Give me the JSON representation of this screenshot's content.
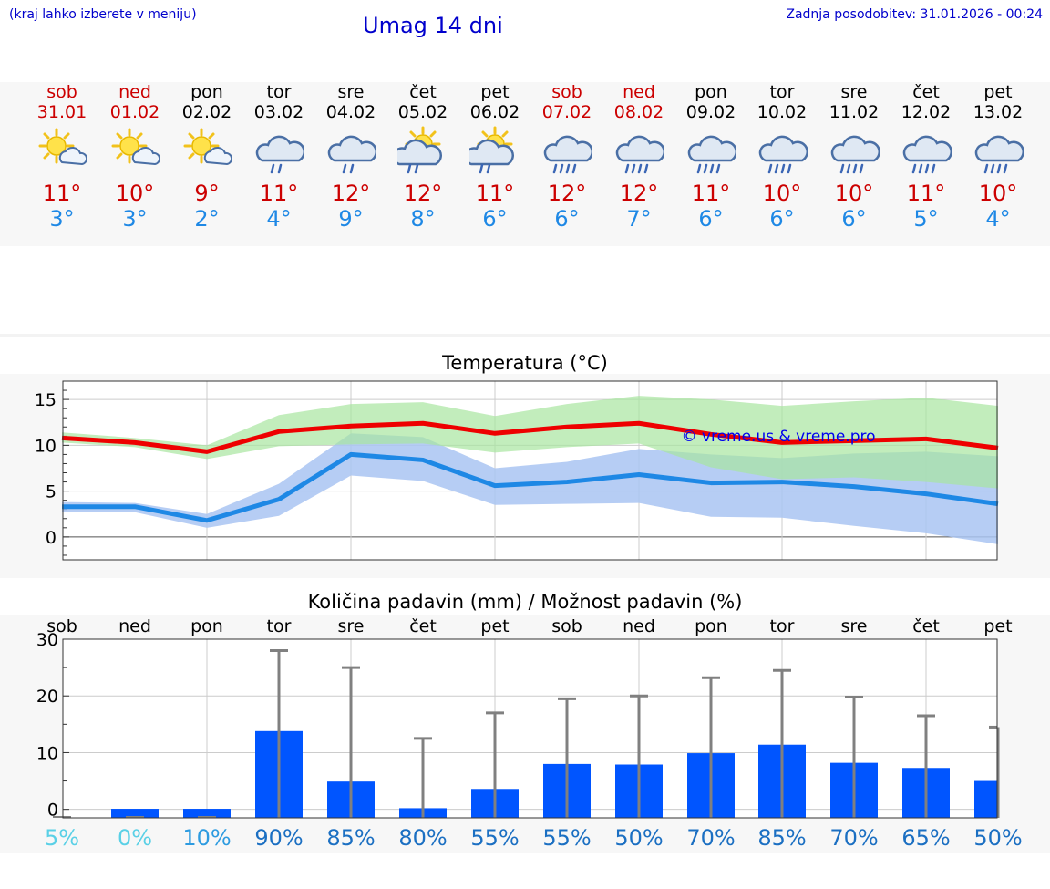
{
  "header": {
    "menu_hint": "(kraj lahko izberete v meniju)",
    "title": "Umag 14 dni",
    "updated": "Zadnja posodobitev: 31.01.2026 - 00:24"
  },
  "colors": {
    "link": "#0000cc",
    "max_temp": "#cc0000",
    "min_temp": "#1e88e5",
    "bar": "#0055ff",
    "whisker": "#808080",
    "max_band": "#a8e6a0",
    "min_band": "#a9c4f2"
  },
  "days": [
    {
      "name": "sob",
      "date": "31.01",
      "weekend": true,
      "icon": "sun-cloud-icon",
      "tmax": "11°",
      "tmin": "3°"
    },
    {
      "name": "ned",
      "date": "01.02",
      "weekend": true,
      "icon": "sun-cloud-icon",
      "tmax": "10°",
      "tmin": "3°"
    },
    {
      "name": "pon",
      "date": "02.02",
      "weekend": false,
      "icon": "sun-cloud-icon",
      "tmax": "9°",
      "tmin": "2°"
    },
    {
      "name": "tor",
      "date": "03.02",
      "weekend": false,
      "icon": "cloud-rain-icon",
      "tmax": "11°",
      "tmin": "4°"
    },
    {
      "name": "sre",
      "date": "04.02",
      "weekend": false,
      "icon": "cloud-rain-icon",
      "tmax": "12°",
      "tmin": "9°"
    },
    {
      "name": "čet",
      "date": "05.02",
      "weekend": false,
      "icon": "sun-cloud-rain-icon",
      "tmax": "12°",
      "tmin": "8°"
    },
    {
      "name": "pet",
      "date": "06.02",
      "weekend": false,
      "icon": "sun-cloud-rain-icon",
      "tmax": "11°",
      "tmin": "6°"
    },
    {
      "name": "sob",
      "date": "07.02",
      "weekend": true,
      "icon": "cloud-heavy-rain-icon",
      "tmax": "12°",
      "tmin": "6°"
    },
    {
      "name": "ned",
      "date": "08.02",
      "weekend": true,
      "icon": "cloud-heavy-rain-icon",
      "tmax": "12°",
      "tmin": "7°"
    },
    {
      "name": "pon",
      "date": "09.02",
      "weekend": false,
      "icon": "cloud-heavy-rain-icon",
      "tmax": "11°",
      "tmin": "6°"
    },
    {
      "name": "tor",
      "date": "10.02",
      "weekend": false,
      "icon": "cloud-heavy-rain-icon",
      "tmax": "10°",
      "tmin": "6°"
    },
    {
      "name": "sre",
      "date": "11.02",
      "weekend": false,
      "icon": "cloud-heavy-rain-icon",
      "tmax": "10°",
      "tmin": "6°"
    },
    {
      "name": "čet",
      "date": "12.02",
      "weekend": false,
      "icon": "cloud-heavy-rain-icon",
      "tmax": "11°",
      "tmin": "5°"
    },
    {
      "name": "pet",
      "date": "13.02",
      "weekend": false,
      "icon": "cloud-heavy-rain-icon",
      "tmax": "10°",
      "tmin": "4°"
    }
  ],
  "chart_data": [
    {
      "type": "line",
      "title": "Temperatura (°C)",
      "watermark": "© vreme.us & vreme.pro",
      "x": [
        0,
        1,
        2,
        3,
        4,
        5,
        6,
        7,
        8,
        9,
        10,
        11,
        12,
        13
      ],
      "ylim": [
        -2.5,
        17
      ],
      "yticks": [
        0,
        5,
        10,
        15
      ],
      "grid": true,
      "series": [
        {
          "name": "max",
          "values": [
            10.8,
            10.3,
            9.3,
            11.5,
            12.1,
            12.4,
            11.3,
            12.0,
            12.4,
            11.2,
            10.3,
            10.5,
            10.7,
            9.7
          ]
        },
        {
          "name": "min",
          "values": [
            3.3,
            3.3,
            1.8,
            4.1,
            9.0,
            8.4,
            5.6,
            6.0,
            6.8,
            5.9,
            6.0,
            5.5,
            4.7,
            3.6
          ]
        }
      ],
      "bands": [
        {
          "name": "max_range",
          "upper": [
            11.4,
            10.8,
            10.0,
            13.3,
            14.5,
            14.7,
            13.2,
            14.5,
            15.4,
            15.0,
            14.3,
            14.8,
            15.2,
            14.3
          ],
          "lower": [
            10.3,
            9.8,
            8.5,
            9.9,
            10.1,
            10.2,
            9.2,
            9.8,
            10.2,
            7.6,
            6.3,
            6.5,
            6.0,
            5.3
          ]
        },
        {
          "name": "min_range",
          "upper": [
            3.8,
            3.7,
            2.5,
            5.8,
            11.3,
            10.9,
            7.5,
            8.2,
            9.6,
            9.0,
            8.6,
            9.1,
            9.3,
            8.8
          ],
          "lower": [
            2.7,
            2.7,
            1.0,
            2.3,
            6.7,
            6.1,
            3.5,
            3.6,
            3.7,
            2.2,
            2.1,
            1.2,
            0.4,
            -0.8
          ]
        }
      ]
    },
    {
      "type": "bar",
      "title": "Količina padavin (mm) / Možnost padavin (%)",
      "categories": [
        "sob",
        "ned",
        "pon",
        "tor",
        "sre",
        "čet",
        "pet",
        "sob",
        "ned",
        "pon",
        "tor",
        "sre",
        "čet",
        "pet"
      ],
      "values": [
        0,
        0.1,
        0.1,
        13.8,
        4.9,
        0.2,
        3.6,
        8.0,
        7.9,
        9.9,
        11.4,
        8.2,
        7.3,
        5.0
      ],
      "error_upper": [
        0,
        0,
        0,
        28.0,
        25.0,
        12.5,
        17.0,
        19.5,
        20.0,
        23.2,
        24.5,
        19.8,
        16.5,
        14.5
      ],
      "probability": [
        "5%",
        "0%",
        "10%",
        "90%",
        "85%",
        "80%",
        "55%",
        "55%",
        "50%",
        "70%",
        "85%",
        "70%",
        "65%",
        "50%"
      ],
      "ylim": [
        -1.5,
        30
      ],
      "yticks": [
        0,
        10,
        20,
        30
      ]
    }
  ]
}
